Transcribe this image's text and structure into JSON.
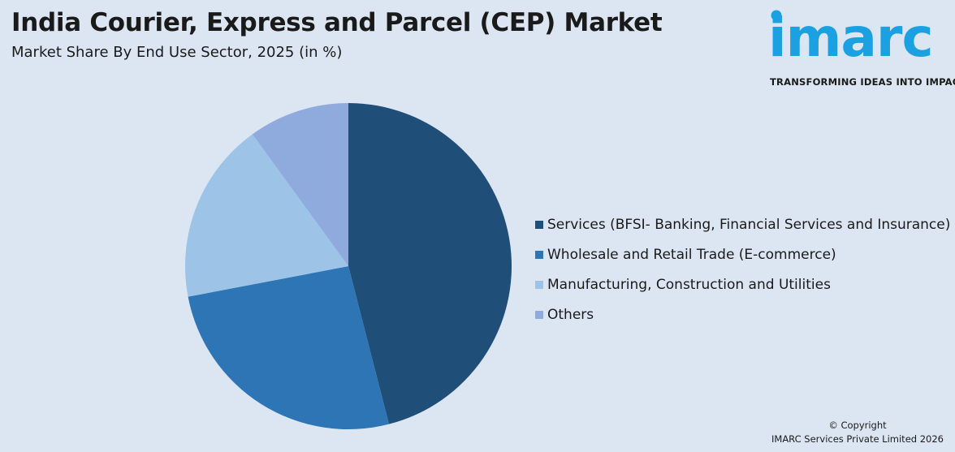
{
  "header": {
    "title": "India Courier, Express and Parcel (CEP) Market",
    "subtitle": "Market Share By End Use Sector, 2025 (in %)"
  },
  "logo": {
    "wordmark": "imarc",
    "tagline": "TRANSFORMING IDEAS INTO IMPACT",
    "color": "#1ba1e2"
  },
  "chart_data": {
    "type": "pie",
    "title": "Market Share By End Use Sector, 2025 (in %)",
    "legend_position": "right",
    "categories": [
      "Services (BFSI- Banking, Financial Services and Insurance)",
      "Wholesale and Retail Trade (E-commerce)",
      "Manufacturing, Construction and Utilities",
      "Others"
    ],
    "values": [
      46,
      26,
      18,
      10
    ],
    "colors": [
      "#1f4e79",
      "#2e75b6",
      "#9dc3e6",
      "#8faadc"
    ]
  },
  "footer": {
    "copyright_line1": "© Copyright",
    "copyright_line2": "IMARC Services Private Limited 2026"
  }
}
